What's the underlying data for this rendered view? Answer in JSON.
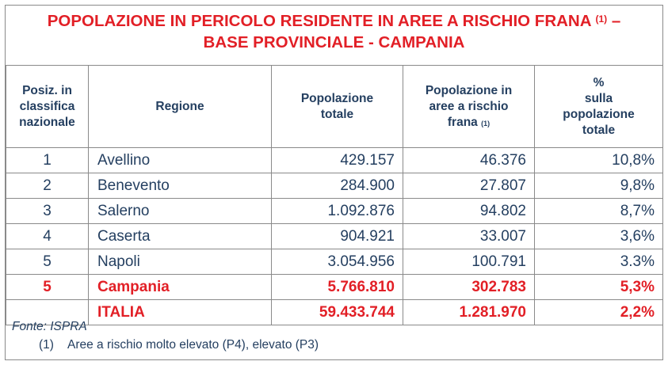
{
  "title": {
    "line1": "POPOLAZIONE IN PERICOLO RESIDENTE IN AREE A RISCHIO FRANA",
    "line1_note": "(1)",
    "line1_dash": " –",
    "line2": "BASE PROVINCIALE - CAMPANIA"
  },
  "headers": {
    "position": [
      "Posiz. in",
      "classifica",
      "nazionale"
    ],
    "region": "Regione",
    "population": [
      "Popolazione",
      "totale"
    ],
    "population_risk": [
      "Popolazione in",
      "aree a rischio",
      "frana"
    ],
    "population_risk_note": "(1)",
    "percent": [
      "%",
      "sulla",
      "popolazione",
      "totale"
    ]
  },
  "rows": [
    {
      "pos": "1",
      "name": "Avellino",
      "pop": "429.157",
      "risk": "46.376",
      "pct": "10,8%"
    },
    {
      "pos": "2",
      "name": "Benevento",
      "pop": "284.900",
      "risk": "27.807",
      "pct": "9,8%"
    },
    {
      "pos": "3",
      "name": "Salerno",
      "pop": "1.092.876",
      "risk": "94.802",
      "pct": "8,7%"
    },
    {
      "pos": "4",
      "name": "Caserta",
      "pop": "904.921",
      "risk": "33.007",
      "pct": "3,6%"
    },
    {
      "pos": "5",
      "name": "Napoli",
      "pop": "3.054.956",
      "risk": "100.791",
      "pct": "3.3%"
    }
  ],
  "totals": [
    {
      "pos": "5",
      "name": "Campania",
      "pop": "5.766.810",
      "risk": "302.783",
      "pct": "5,3%"
    },
    {
      "pos": "",
      "name": "ITALIA",
      "pop": "59.433.744",
      "risk": "1.281.970",
      "pct": "2,2%"
    }
  ],
  "footer": {
    "source": "Fonte: ISPRA",
    "note_label": "(1)",
    "note_text": "Aree a rischio molto elevato (P4), elevato (P3)"
  },
  "colors": {
    "accent_red": "#e21f26",
    "text_navy": "#243f60",
    "border": "#8a8a8a"
  }
}
